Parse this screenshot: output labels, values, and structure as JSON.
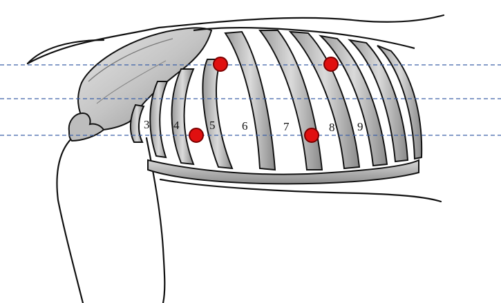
{
  "rib_numbers": [
    "3",
    "4",
    "5",
    "6",
    "7",
    "8",
    "9"
  ],
  "colors": {
    "background": "#ffffff",
    "outline": "#111111",
    "bone_fill": "#c9c9c9",
    "bone_shade": "#9e9e9e",
    "guide_line": "#3a5fa8",
    "marker": "#e01010",
    "marker_stroke": "#7a0000"
  },
  "guide_line_style": "dashed",
  "marker_count": 4
}
